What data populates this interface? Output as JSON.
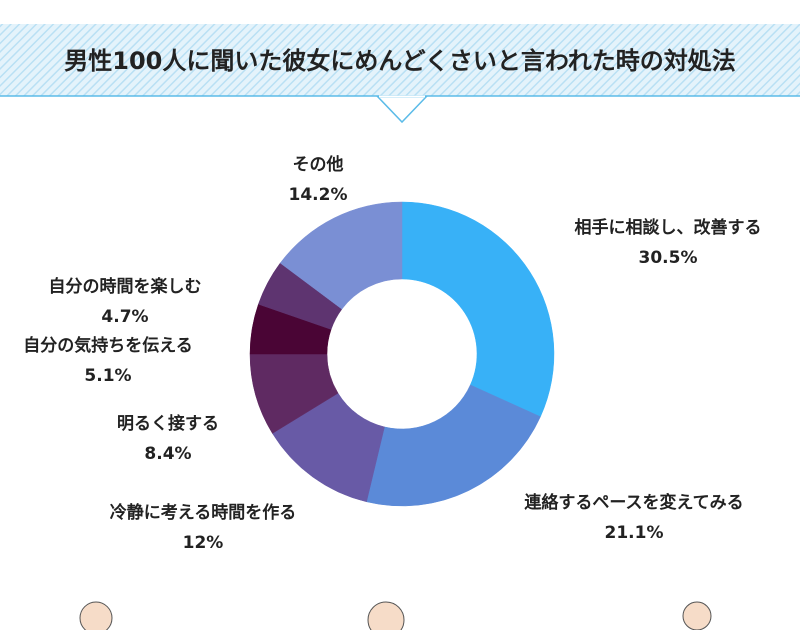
{
  "chart_data": {
    "type": "pie",
    "donut": true,
    "title": "男性100人に聞いた彼女にめんどくさいと言われた時の対処法",
    "categories": [
      "相手に相談し、改善する",
      "連絡するペースを変えてみる",
      "冷静に考える時間を作る",
      "明るく接する",
      "自分の気持ちを伝える",
      "自分の時間を楽しむ",
      "その他"
    ],
    "values": [
      30.5,
      21.1,
      12,
      8.4,
      5.1,
      4.7,
      14.2
    ],
    "value_labels": [
      "30.5%",
      "21.1%",
      "12%",
      "8.4%",
      "5.1%",
      "4.7%",
      "14.2%"
    ],
    "colors": [
      "#38b1f7",
      "#5b8ad8",
      "#685aa6",
      "#5f2a62",
      "#4a0535",
      "#5e3470",
      "#7a8fd4"
    ]
  }
}
